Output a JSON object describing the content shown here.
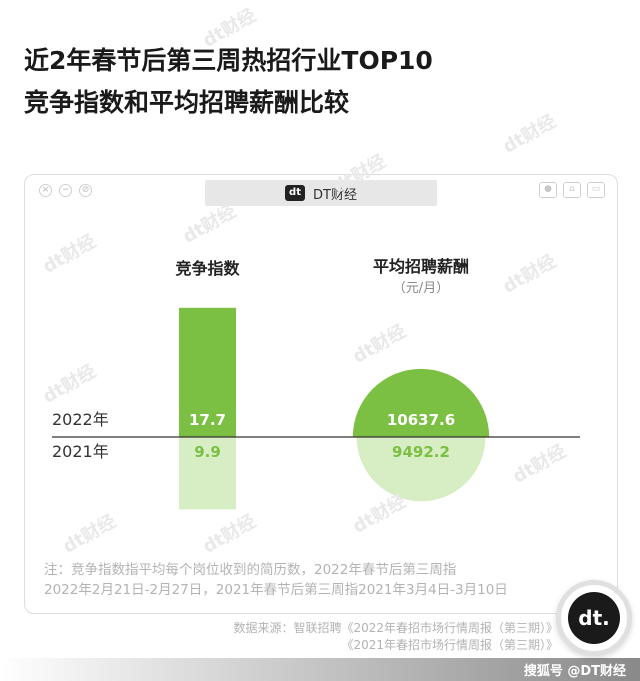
{
  "title": {
    "line1": "近2年春节后第三周热招行业TOP10",
    "line2": "竞争指数和平均招聘薪酬比较"
  },
  "window": {
    "tab_logo": "dt",
    "tab_label": "DT财经",
    "buttons": [
      "×",
      "−",
      "⊘"
    ],
    "tools": [
      "●",
      "⌂",
      "▭"
    ]
  },
  "watermark": "dt财经",
  "chart_data": {
    "type": "bar",
    "panels": [
      {
        "title": "竞争指数",
        "unit": "",
        "mark": "bar",
        "series": [
          {
            "name": "2022年",
            "value": 17.7,
            "label": "17.7"
          },
          {
            "name": "2021年",
            "value": 9.9,
            "label": "9.9"
          }
        ]
      },
      {
        "title": "平均招聘薪酬",
        "unit": "（元/月）",
        "mark": "circle",
        "series": [
          {
            "name": "2022年",
            "value": 10637.6,
            "label": "10637.6"
          },
          {
            "name": "2021年",
            "value": 9492.2,
            "label": "9492.2"
          }
        ]
      }
    ],
    "row_labels": [
      "2022年",
      "2021年"
    ],
    "colors": {
      "y2022": "#7bc043",
      "y2021": "#d7edc4"
    }
  },
  "note": {
    "line1": "注：竞争指数指平均每个岗位收到的简历数，2022年春节后第三周指",
    "line2": "2022年2月21日-2月27日，2021年春节后第三周指2021年3月4日-3月10日"
  },
  "source": {
    "line1": "数据来源：智联招聘《2022年春招市场行情周报（第三期）》",
    "line2": "《2021年春招市场行情周报（第三期）》"
  },
  "badge": "dt.",
  "footer": "搜狐号 @DT财经"
}
